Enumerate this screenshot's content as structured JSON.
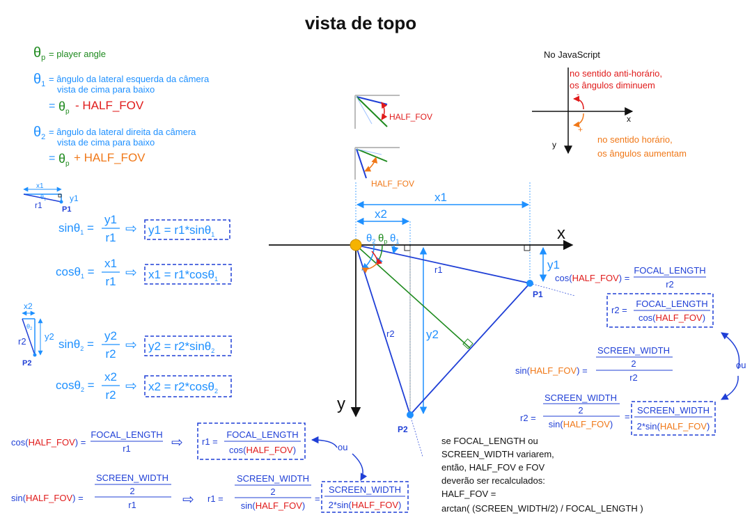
{
  "title": "vista de topo",
  "colors": {
    "green": "#1e8a1e",
    "lightblue": "#1e90ff",
    "blue": "#1f3fd6",
    "red": "#e01b1b",
    "orange": "#f07818",
    "black": "#111111",
    "gold": "#f5b301"
  },
  "legend": {
    "theta": "θ",
    "sub_p": "p",
    "sub_1": "1",
    "sub_2": "2",
    "eq": "=",
    "player_angle": "= player angle",
    "t1_line1": "= ângulo da lateral esquerda da câmera",
    "t1_line2": "vista de cima para baixo",
    "t2_line1": "= ângulo da lateral direita da câmera",
    "t2_line2": "vista de cima para baixo",
    "minus_half": "- HALF_FOV",
    "plus_half": "+ HALF_FOV"
  },
  "tri1": {
    "x1": "x1",
    "y1": "y1",
    "r1": "r1",
    "t": "θ",
    "sub": "1",
    "p1": "P1"
  },
  "tri2": {
    "x2": "x2",
    "y2": "y2",
    "r2": "r2",
    "t": "θ",
    "sub": "2",
    "p2": "P2"
  },
  "formulas": {
    "sin": "sin",
    "cos": "cos",
    "y1": "y1",
    "x1": "x1",
    "r1": "r1",
    "y2": "y2",
    "x2": "x2",
    "r2": "r2",
    "box_y1": "y1 = r1*sin",
    "box_x1": "x1 = r1*cos",
    "box_y2": "y2 = r2*sin",
    "box_x2": "x2 = r2*cos",
    "arrow": "⇨"
  },
  "insets": {
    "half_fov_1": "HALF_FOV",
    "half_fov_2": "HALF_FOV"
  },
  "js_axes": {
    "title": "No JavaScript",
    "ccw_line1": "no sentido anti-horário,",
    "ccw_line2": "os ângulos diminuem",
    "cw_line1": "no sentido horário,",
    "cw_line2": "os ângulos aumentam",
    "minus": "-",
    "plus": "+",
    "x": "x",
    "y": "y"
  },
  "main": {
    "x_label": "x",
    "y_label": "y",
    "x1": "x1",
    "x2": "x2",
    "y1": "y1",
    "y2": "y2",
    "r1": "r1",
    "r2": "r2",
    "p1": "P1",
    "p2": "P2",
    "theta": "θ",
    "sub_2": "2",
    "sub_p": "p",
    "sub_1": "1"
  },
  "right_formulas": {
    "cos_pre": "cos(",
    "half_fov": "HALF_FOV",
    "close_eq": ") =",
    "focal_length": "FOCAL_LENGTH",
    "r2": "r2",
    "r2_eq": "r2 =",
    "cos_open": "cos(",
    "close": ")",
    "sin_pre": "sin(",
    "screen_width": "SCREEN_WIDTH",
    "two": "2",
    "sin_open": "sin(",
    "two_sin": "2*sin(",
    "ou": "ou"
  },
  "bottom_formulas": {
    "cos_pre": "cos(",
    "half_fov": "HALF_FOV",
    "close_eq": ") =",
    "focal_length": "FOCAL_LENGTH",
    "r1": "r1",
    "r1_eq": "r1 =",
    "cos_open": "cos(",
    "close": ")",
    "sin_pre": "sin(",
    "screen_width": "SCREEN_WIDTH",
    "two": "2",
    "sin_open": "sin(",
    "two_sin": "2*sin(",
    "ou": "ou",
    "arrow": "⇨"
  },
  "note": {
    "line1": "se FOCAL_LENGTH ou",
    "line2": "SCREEN_WIDTH variarem,",
    "line3": "então, HALF_FOV e FOV",
    "line4": "deverão ser recalculados:",
    "line5": "HALF_FOV =",
    "line6": "arctan( (SCREEN_WIDTH/2) / FOCAL_LENGTH )"
  }
}
